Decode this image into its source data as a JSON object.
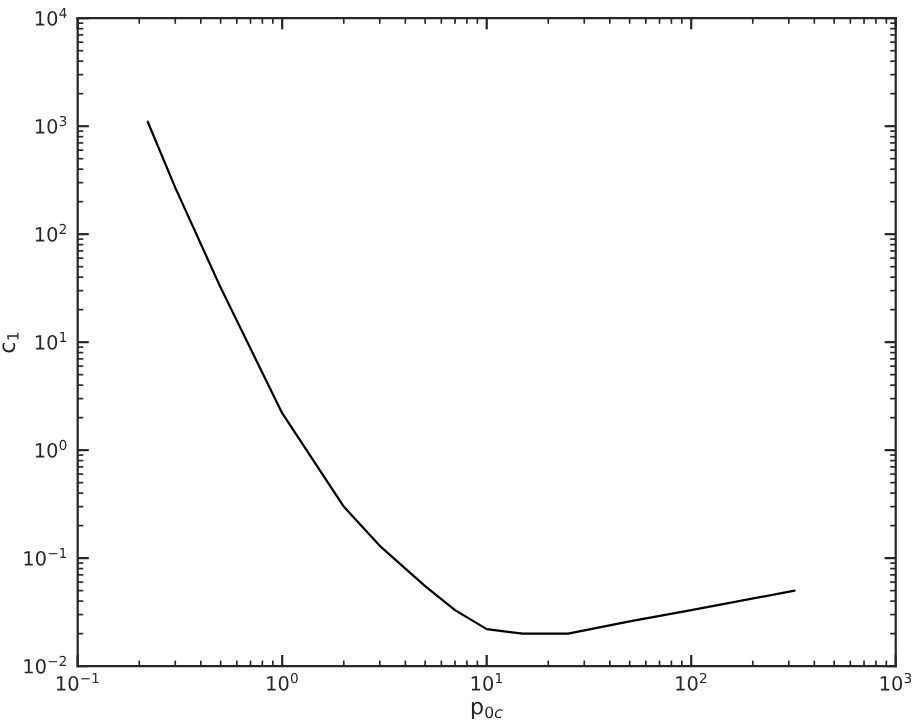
{
  "chart_data": {
    "type": "line",
    "xlabel": "p$_{0c}$",
    "ylabel": "c$_{1}$",
    "log": "xy",
    "x": [
      0.22,
      0.3,
      0.5,
      1.0,
      2.0,
      3.0,
      5.0,
      7.0,
      10,
      15,
      25,
      50,
      100,
      320
    ],
    "series": [
      {
        "color": "#000000",
        "values": [
          1100,
          270,
          32,
          2.2,
          0.3,
          0.13,
          0.055,
          0.033,
          0.022,
          0.02,
          0.02,
          0.026,
          0.033,
          0.05
        ]
      }
    ],
    "xlim": [
      0.1,
      1000
    ],
    "ylim": [
      0.01,
      10000
    ],
    "xticks": [
      {
        "value": 0.1,
        "label": "10$^{−1}$"
      },
      {
        "value": 1,
        "label": "10$^{0}$"
      },
      {
        "value": 10,
        "label": "10$^{1}$"
      },
      {
        "value": 100,
        "label": "10$^{2}$"
      },
      {
        "value": 1000,
        "label": "10$^{3}$"
      }
    ],
    "yticks": [
      {
        "value": 0.01,
        "label": "10$^{−2}$"
      },
      {
        "value": 0.1,
        "label": "10$^{−1}$"
      },
      {
        "value": 1,
        "label": "10$^{0}$"
      },
      {
        "value": 10,
        "label": "10$^{1}$"
      },
      {
        "value": 100,
        "label": "10$^{2}$"
      },
      {
        "value": 1000,
        "label": "10$^{3}$"
      },
      {
        "value": 10000,
        "label": "10$^{4}$"
      }
    ],
    "grid": false,
    "legend": false
  }
}
